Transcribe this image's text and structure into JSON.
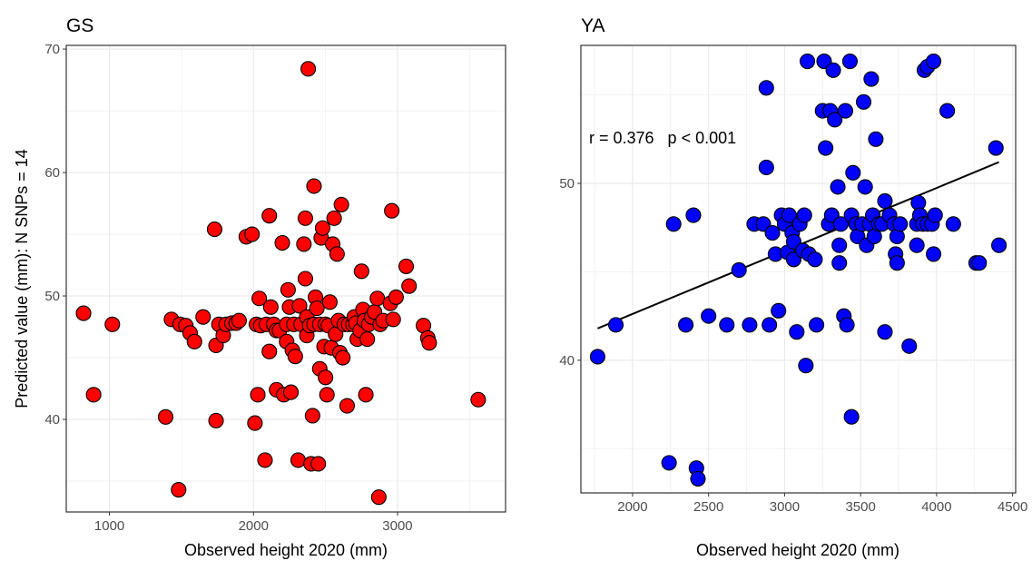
{
  "chart_data": [
    {
      "type": "scatter",
      "title": "GS",
      "xlabel": "Observed height 2020 (mm)",
      "ylabel": "Predicted value (mm): N SNPs = 14",
      "xlim": [
        700,
        3750
      ],
      "ylim": [
        32.5,
        70.3
      ],
      "xticks": [
        1000,
        2000,
        3000
      ],
      "yticks": [
        40,
        50,
        60,
        70
      ],
      "tick_labels_x": [
        "1000",
        "2000",
        "3000"
      ],
      "tick_labels_y": [
        "40",
        "50",
        "60",
        "70"
      ],
      "grid": true,
      "point_color": "#ff0000",
      "points": [
        [
          820,
          48.6
        ],
        [
          890,
          42.0
        ],
        [
          1020,
          47.7
        ],
        [
          1390,
          40.2
        ],
        [
          1430,
          48.1
        ],
        [
          1480,
          34.3
        ],
        [
          1490,
          47.7
        ],
        [
          1530,
          47.6
        ],
        [
          1560,
          47.0
        ],
        [
          1590,
          46.3
        ],
        [
          1650,
          48.3
        ],
        [
          1730,
          55.4
        ],
        [
          1740,
          46.0
        ],
        [
          1740,
          39.9
        ],
        [
          1760,
          47.7
        ],
        [
          1790,
          46.8
        ],
        [
          1810,
          47.7
        ],
        [
          1850,
          47.8
        ],
        [
          1880,
          47.8
        ],
        [
          1900,
          48.0
        ],
        [
          1950,
          54.8
        ],
        [
          1990,
          55.0
        ],
        [
          2010,
          39.7
        ],
        [
          2020,
          47.7
        ],
        [
          2030,
          42.0
        ],
        [
          2040,
          49.8
        ],
        [
          2050,
          47.6
        ],
        [
          2080,
          36.7
        ],
        [
          2090,
          47.7
        ],
        [
          2110,
          56.5
        ],
        [
          2110,
          45.5
        ],
        [
          2120,
          49.1
        ],
        [
          2140,
          47.7
        ],
        [
          2160,
          47.2
        ],
        [
          2160,
          42.4
        ],
        [
          2180,
          47.2
        ],
        [
          2200,
          54.3
        ],
        [
          2210,
          42.0
        ],
        [
          2230,
          46.3
        ],
        [
          2230,
          47.7
        ],
        [
          2240,
          50.5
        ],
        [
          2250,
          49.1
        ],
        [
          2260,
          42.2
        ],
        [
          2270,
          45.6
        ],
        [
          2280,
          47.7
        ],
        [
          2290,
          45.1
        ],
        [
          2310,
          36.7
        ],
        [
          2320,
          49.2
        ],
        [
          2330,
          47.7
        ],
        [
          2350,
          54.2
        ],
        [
          2360,
          56.3
        ],
        [
          2360,
          51.4
        ],
        [
          2370,
          48.3
        ],
        [
          2370,
          46.8
        ],
        [
          2380,
          68.4
        ],
        [
          2390,
          47.6
        ],
        [
          2400,
          36.4
        ],
        [
          2410,
          40.3
        ],
        [
          2420,
          58.9
        ],
        [
          2420,
          47.7
        ],
        [
          2430,
          49.9
        ],
        [
          2440,
          49.0
        ],
        [
          2450,
          36.4
        ],
        [
          2460,
          44.1
        ],
        [
          2460,
          47.7
        ],
        [
          2470,
          54.7
        ],
        [
          2480,
          55.5
        ],
        [
          2490,
          45.9
        ],
        [
          2500,
          43.4
        ],
        [
          2500,
          47.7
        ],
        [
          2510,
          42.0
        ],
        [
          2520,
          47.6
        ],
        [
          2530,
          49.5
        ],
        [
          2540,
          45.8
        ],
        [
          2550,
          54.2
        ],
        [
          2560,
          56.3
        ],
        [
          2570,
          46.9
        ],
        [
          2580,
          53.4
        ],
        [
          2590,
          48.0
        ],
        [
          2600,
          45.4
        ],
        [
          2610,
          57.4
        ],
        [
          2620,
          45.0
        ],
        [
          2630,
          47.7
        ],
        [
          2650,
          41.1
        ],
        [
          2660,
          47.7
        ],
        [
          2690,
          47.7
        ],
        [
          2700,
          48.3
        ],
        [
          2710,
          47.8
        ],
        [
          2720,
          46.5
        ],
        [
          2740,
          47.2
        ],
        [
          2750,
          52.0
        ],
        [
          2760,
          48.9
        ],
        [
          2770,
          48.0
        ],
        [
          2780,
          42.0
        ],
        [
          2790,
          46.5
        ],
        [
          2800,
          47.7
        ],
        [
          2820,
          48.3
        ],
        [
          2840,
          48.7
        ],
        [
          2860,
          49.8
        ],
        [
          2870,
          33.7
        ],
        [
          2880,
          47.7
        ],
        [
          2900,
          48.0
        ],
        [
          2950,
          49.4
        ],
        [
          2960,
          56.9
        ],
        [
          2970,
          48.1
        ],
        [
          2990,
          49.9
        ],
        [
          3060,
          52.4
        ],
        [
          3080,
          50.8
        ],
        [
          3180,
          47.6
        ],
        [
          3210,
          46.6
        ],
        [
          3220,
          46.2
        ],
        [
          3560,
          41.6
        ]
      ]
    },
    {
      "type": "scatter",
      "title": "YA",
      "xlabel": "Observed height 2020 (mm)",
      "ylabel": "",
      "xlim": [
        1660,
        4520
      ],
      "ylim": [
        32.5,
        57.8
      ],
      "xticks": [
        2000,
        2500,
        3000,
        3500,
        4000,
        4500
      ],
      "yticks": [
        40,
        50
      ],
      "tick_labels_x": [
        "2000",
        "2500",
        "3000",
        "3500",
        "4000",
        "4500"
      ],
      "tick_labels_y": [
        "40",
        "50"
      ],
      "grid": true,
      "point_color": "#0000ff",
      "annotation": "r = 0.376   p < 0.001",
      "trend": {
        "x": [
          1770,
          4410
        ],
        "y": [
          41.8,
          51.2
        ]
      },
      "points": [
        [
          1770,
          40.2
        ],
        [
          1890,
          42.0
        ],
        [
          2240,
          34.2
        ],
        [
          2270,
          47.7
        ],
        [
          2350,
          42.0
        ],
        [
          2400,
          48.2
        ],
        [
          2420,
          33.9
        ],
        [
          2430,
          33.3
        ],
        [
          2500,
          42.5
        ],
        [
          2620,
          42.0
        ],
        [
          2700,
          45.1
        ],
        [
          2770,
          42.0
        ],
        [
          2800,
          47.7
        ],
        [
          2860,
          47.7
        ],
        [
          2880,
          55.4
        ],
        [
          2880,
          50.9
        ],
        [
          2900,
          42.0
        ],
        [
          2920,
          47.2
        ],
        [
          2940,
          46.0
        ],
        [
          2960,
          42.8
        ],
        [
          2980,
          48.2
        ],
        [
          3000,
          47.7
        ],
        [
          3020,
          46.1
        ],
        [
          3030,
          48.2
        ],
        [
          3050,
          47.2
        ],
        [
          3060,
          45.7
        ],
        [
          3060,
          46.7
        ],
        [
          3080,
          41.6
        ],
        [
          3100,
          47.7
        ],
        [
          3120,
          46.2
        ],
        [
          3130,
          48.2
        ],
        [
          3140,
          39.7
        ],
        [
          3150,
          56.9
        ],
        [
          3160,
          46.0
        ],
        [
          3200,
          45.7
        ],
        [
          3210,
          42.0
        ],
        [
          3250,
          54.1
        ],
        [
          3260,
          56.9
        ],
        [
          3270,
          52.0
        ],
        [
          3290,
          47.7
        ],
        [
          3300,
          54.1
        ],
        [
          3310,
          48.2
        ],
        [
          3320,
          56.4
        ],
        [
          3330,
          53.6
        ],
        [
          3350,
          49.8
        ],
        [
          3360,
          45.5
        ],
        [
          3360,
          46.5
        ],
        [
          3370,
          47.7
        ],
        [
          3390,
          42.5
        ],
        [
          3400,
          54.1
        ],
        [
          3410,
          42.0
        ],
        [
          3430,
          56.9
        ],
        [
          3440,
          36.8
        ],
        [
          3440,
          48.2
        ],
        [
          3450,
          50.6
        ],
        [
          3470,
          47.7
        ],
        [
          3480,
          47.0
        ],
        [
          3510,
          47.7
        ],
        [
          3520,
          54.6
        ],
        [
          3530,
          49.8
        ],
        [
          3540,
          46.5
        ],
        [
          3560,
          47.7
        ],
        [
          3570,
          55.9
        ],
        [
          3580,
          48.2
        ],
        [
          3590,
          47.0
        ],
        [
          3600,
          52.5
        ],
        [
          3620,
          47.7
        ],
        [
          3640,
          47.7
        ],
        [
          3660,
          49.0
        ],
        [
          3660,
          41.6
        ],
        [
          3690,
          48.2
        ],
        [
          3720,
          47.7
        ],
        [
          3730,
          46.0
        ],
        [
          3740,
          45.5
        ],
        [
          3740,
          47.0
        ],
        [
          3760,
          47.7
        ],
        [
          3820,
          40.8
        ],
        [
          3870,
          47.7
        ],
        [
          3870,
          46.5
        ],
        [
          3880,
          48.9
        ],
        [
          3890,
          48.2
        ],
        [
          3910,
          47.7
        ],
        [
          3920,
          56.4
        ],
        [
          3940,
          56.6
        ],
        [
          3940,
          47.7
        ],
        [
          3970,
          47.7
        ],
        [
          3980,
          46.0
        ],
        [
          3980,
          56.9
        ],
        [
          3990,
          48.2
        ],
        [
          4070,
          54.1
        ],
        [
          4110,
          47.7
        ],
        [
          4260,
          45.5
        ],
        [
          4280,
          45.5
        ],
        [
          4390,
          52.0
        ],
        [
          4410,
          46.5
        ]
      ]
    }
  ]
}
